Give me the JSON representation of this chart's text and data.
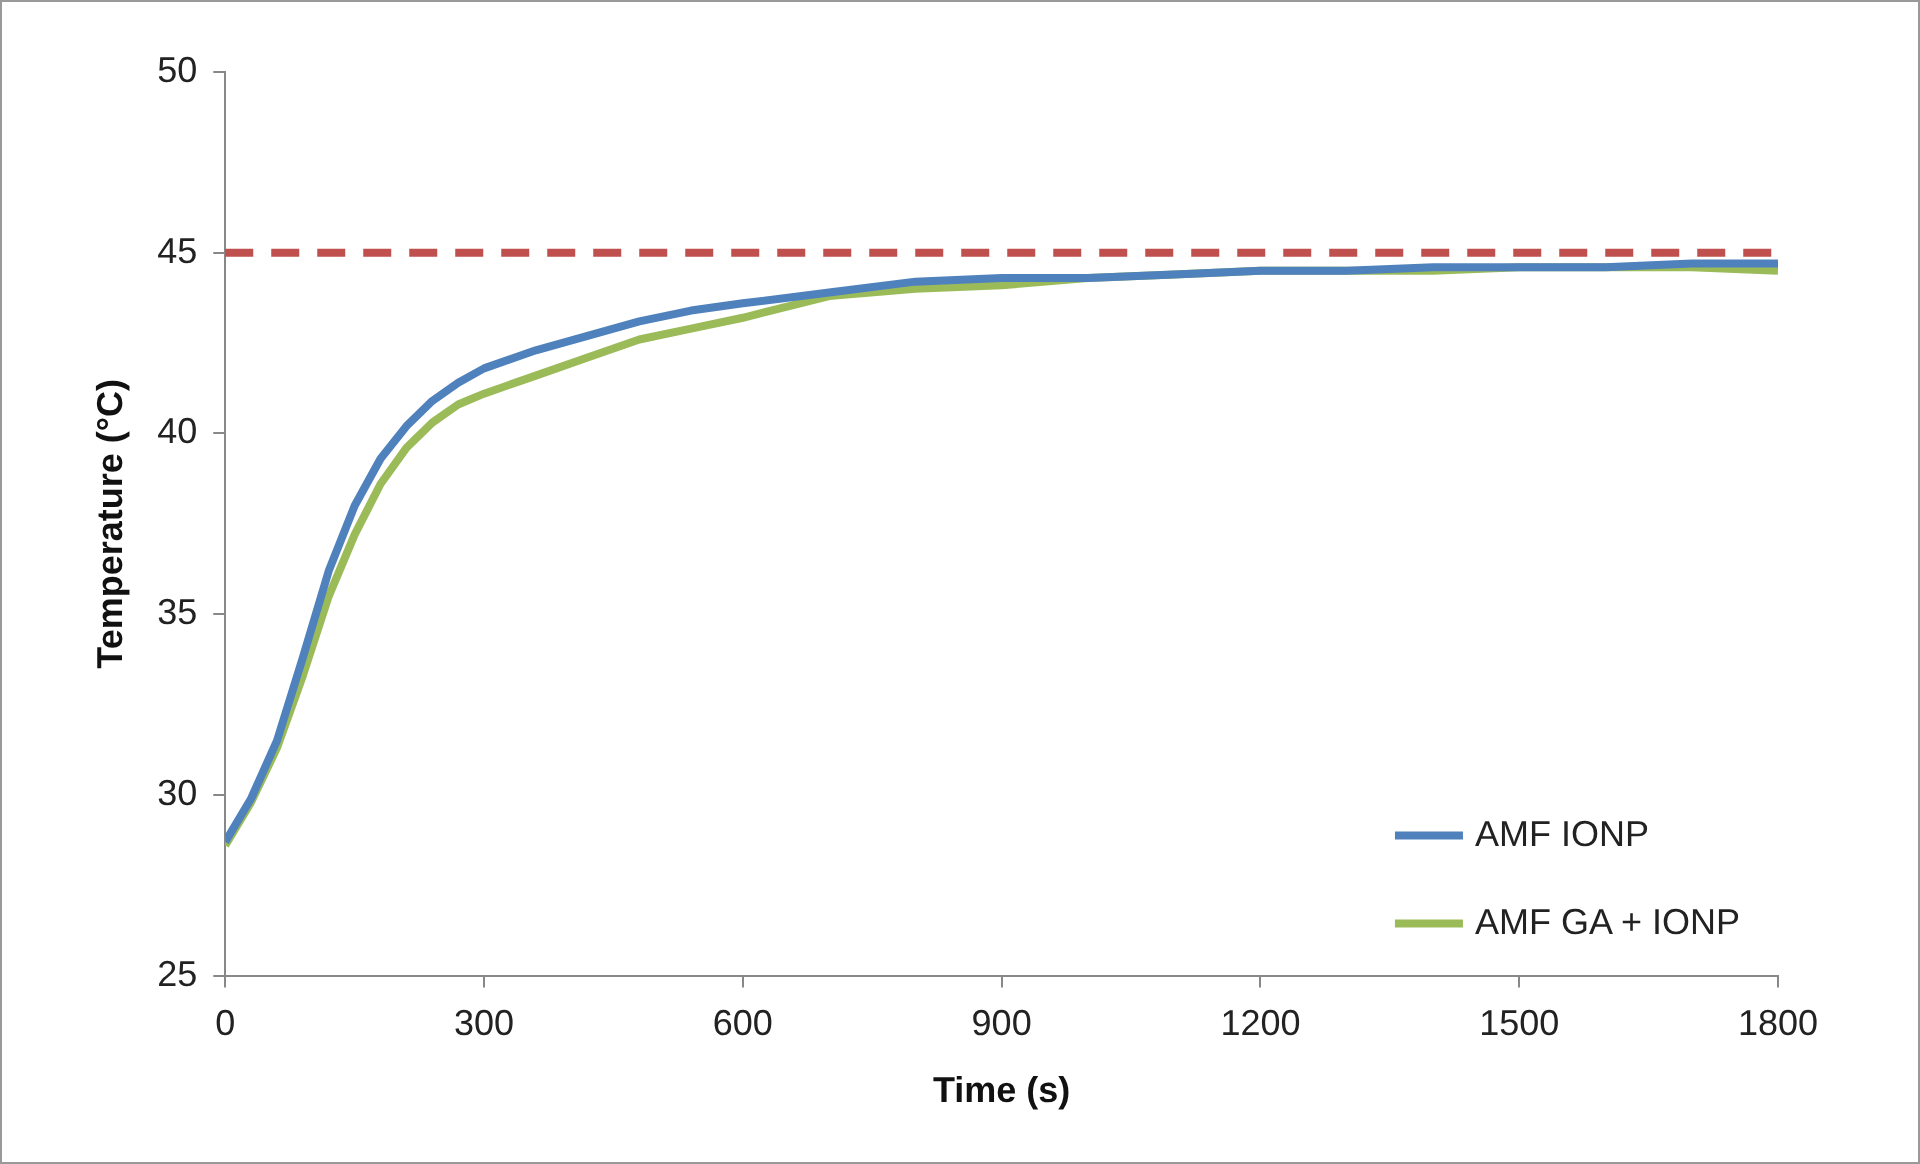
{
  "chart_data": {
    "type": "line",
    "xlabel": "Time (s)",
    "ylabel": "Temperature (°C)",
    "x": [
      0,
      30,
      60,
      90,
      120,
      150,
      180,
      210,
      240,
      270,
      300,
      360,
      420,
      480,
      540,
      600,
      700,
      800,
      900,
      1000,
      1100,
      1200,
      1300,
      1400,
      1500,
      1600,
      1700,
      1800
    ],
    "series": [
      {
        "name": "AMF IONP",
        "color": "#4f81bd",
        "values": [
          28.7,
          29.9,
          31.5,
          33.8,
          36.2,
          38.0,
          39.3,
          40.2,
          40.9,
          41.4,
          41.8,
          42.3,
          42.7,
          43.1,
          43.4,
          43.6,
          43.9,
          44.2,
          44.3,
          44.3,
          44.4,
          44.5,
          44.5,
          44.6,
          44.6,
          44.6,
          44.7,
          44.7
        ]
      },
      {
        "name": "AMF GA + IONP",
        "color": "#9bbb59",
        "values": [
          28.6,
          29.8,
          31.3,
          33.3,
          35.5,
          37.2,
          38.6,
          39.6,
          40.3,
          40.8,
          41.1,
          41.6,
          42.1,
          42.6,
          42.9,
          43.2,
          43.8,
          44.0,
          44.1,
          44.3,
          44.4,
          44.5,
          44.5,
          44.5,
          44.6,
          44.6,
          44.6,
          44.5
        ]
      }
    ],
    "xlim": [
      0,
      1800
    ],
    "xticks": [
      0,
      300,
      600,
      900,
      1200,
      1500,
      1800
    ],
    "ylim": [
      25,
      50
    ],
    "yticks": [
      25,
      30,
      35,
      40,
      45,
      50
    ],
    "ref_lines": [
      {
        "axis": "y",
        "value": 45,
        "color": "#c0504d",
        "line_style": "dashed"
      }
    ],
    "grid": false,
    "legend": "bottom right",
    "marker": "none",
    "line_style": "solid"
  }
}
